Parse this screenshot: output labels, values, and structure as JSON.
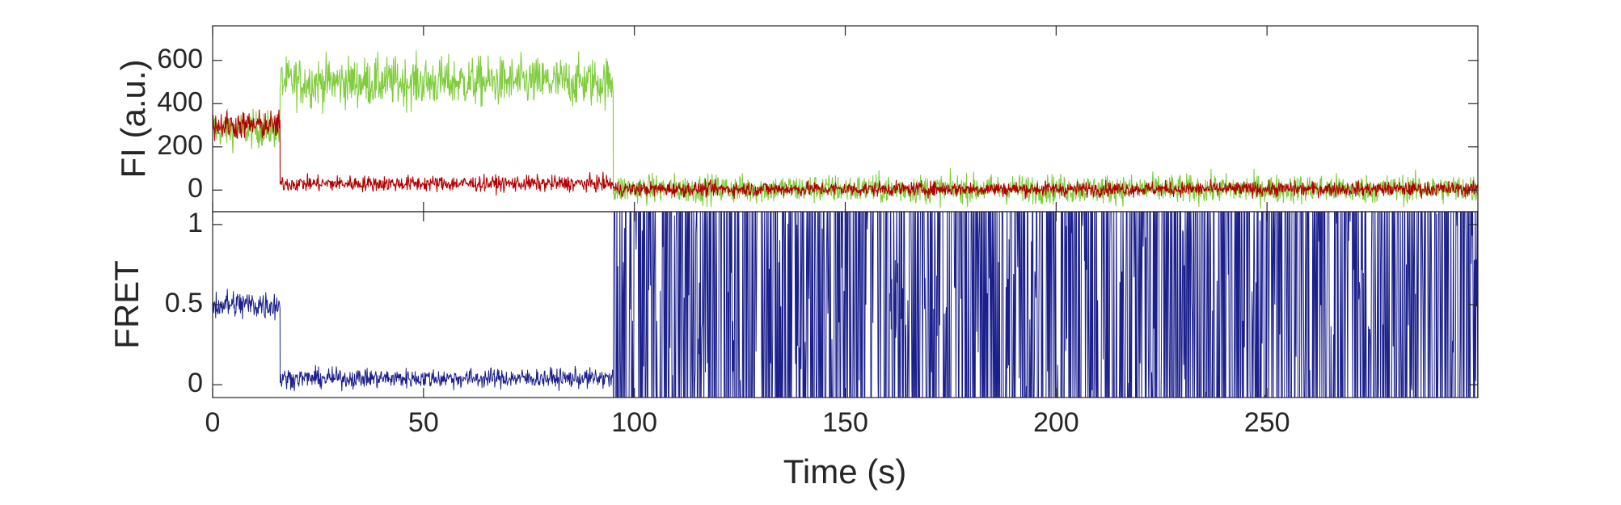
{
  "chart_data": [
    {
      "type": "line",
      "panel": "top",
      "ylabel": "FI (a.u.)",
      "xlim": [
        0,
        300
      ],
      "ylim": [
        -100,
        760
      ],
      "yticks": [
        0,
        200,
        400,
        600
      ],
      "ytick_labels": [
        "0",
        "200",
        "400",
        "600"
      ],
      "grid": false,
      "colors": {
        "donor": "#7fcc3c",
        "acceptor": "#b20000"
      },
      "series": [
        {
          "color": "#7fcc3c",
          "segments": [
            {
              "x_start": 0,
              "x_end": 16,
              "mean": 280,
              "noise": 70
            },
            {
              "x_start": 16,
              "x_end": 95,
              "mean": 500,
              "noise": 95
            },
            {
              "x_start": 95,
              "x_end": 300,
              "mean": 5,
              "noise": 55
            }
          ]
        },
        {
          "color": "#b20000",
          "segments": [
            {
              "x_start": 0,
              "x_end": 16,
              "mean": 300,
              "noise": 55
            },
            {
              "x_start": 16,
              "x_end": 95,
              "mean": 30,
              "noise": 30
            },
            {
              "x_start": 95,
              "x_end": 300,
              "mean": 5,
              "noise": 28
            }
          ]
        }
      ]
    },
    {
      "type": "line",
      "panel": "bottom",
      "xlabel": "Time (s)",
      "ylabel": "FRET",
      "xlim": [
        0,
        300
      ],
      "ylim": [
        -0.08,
        1.08
      ],
      "xticks": [
        0,
        50,
        100,
        150,
        200,
        250
      ],
      "xtick_labels": [
        "0",
        "50",
        "100",
        "150",
        "200",
        "250"
      ],
      "yticks": [
        0,
        0.5,
        1
      ],
      "ytick_labels": [
        "0",
        "0.5",
        "1"
      ],
      "grid": false,
      "colors": {
        "fret": "#1a1f8c"
      },
      "series": [
        {
          "color": "#1a1f8c",
          "segments": [
            {
              "x_start": 0,
              "x_end": 16,
              "mean": 0.5,
              "noise": 0.08
            },
            {
              "x_start": 16,
              "x_end": 95,
              "mean": 0.04,
              "noise": 0.05
            },
            {
              "x_start": 95,
              "x_end": 300,
              "mean": 0.5,
              "noise": 0.55,
              "clipped_range": [
                -0.08,
                1.08
              ]
            }
          ]
        }
      ]
    }
  ]
}
